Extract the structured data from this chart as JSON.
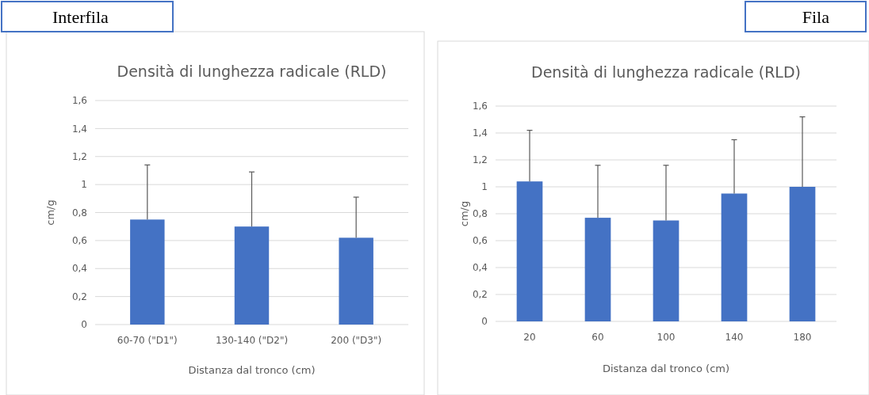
{
  "chart_data": [
    {
      "type": "bar",
      "title": "Densità di lunghezza radicale (RLD)",
      "xlabel": "Distanza dal tronco (cm)",
      "ylabel": "cm/g",
      "annotations": [
        "Interfila"
      ],
      "categories": [
        "60-70 (\"D1\")",
        "130-140 (\"D2\")",
        "200 (\"D3\")"
      ],
      "values": [
        0.75,
        0.7,
        0.62
      ],
      "errors": [
        [
          0.75,
          1.14
        ],
        [
          0.7,
          1.09
        ],
        [
          0.62,
          0.91
        ]
      ],
      "color": "#4472c4",
      "ylim": [
        0,
        1.6
      ],
      "yticks": [
        {
          "value": 0,
          "label": "0"
        },
        {
          "value": 0.2,
          "label": "0,2"
        },
        {
          "value": 0.4,
          "label": "0,4"
        },
        {
          "value": 0.6,
          "label": "0,6"
        },
        {
          "value": 0.8,
          "label": "0,8"
        },
        {
          "value": 1,
          "label": "1"
        },
        {
          "value": 1.2,
          "label": "1,2"
        },
        {
          "value": 1.4,
          "label": "1,4"
        },
        {
          "value": 1.6,
          "label": "1,6"
        }
      ],
      "grid": "y"
    },
    {
      "type": "bar",
      "title": "Densità di lunghezza radicale (RLD)",
      "xlabel": "Distanza dal tronco (cm)",
      "ylabel": "cm/g",
      "annotations": [
        "Fila"
      ],
      "categories": [
        "20",
        "60",
        "100",
        "140",
        "180"
      ],
      "values": [
        1.04,
        0.77,
        0.75,
        0.95,
        1.0
      ],
      "errors": [
        [
          1.04,
          1.42
        ],
        [
          0.77,
          1.16
        ],
        [
          0.75,
          1.16
        ],
        [
          0.95,
          1.35
        ],
        [
          1.0,
          1.52
        ]
      ],
      "color": "#4472c4",
      "ylim": [
        0,
        1.6
      ],
      "yticks": [
        {
          "value": 0,
          "label": "0"
        },
        {
          "value": 0.2,
          "label": "0,2"
        },
        {
          "value": 0.4,
          "label": "0,4"
        },
        {
          "value": 0.6,
          "label": "0,6"
        },
        {
          "value": 0.8,
          "label": "0,8"
        },
        {
          "value": 1,
          "label": "1"
        },
        {
          "value": 1.2,
          "label": "1,2"
        },
        {
          "value": 1.4,
          "label": "1,4"
        },
        {
          "value": 1.6,
          "label": "1,6"
        }
      ],
      "grid": "y"
    }
  ]
}
